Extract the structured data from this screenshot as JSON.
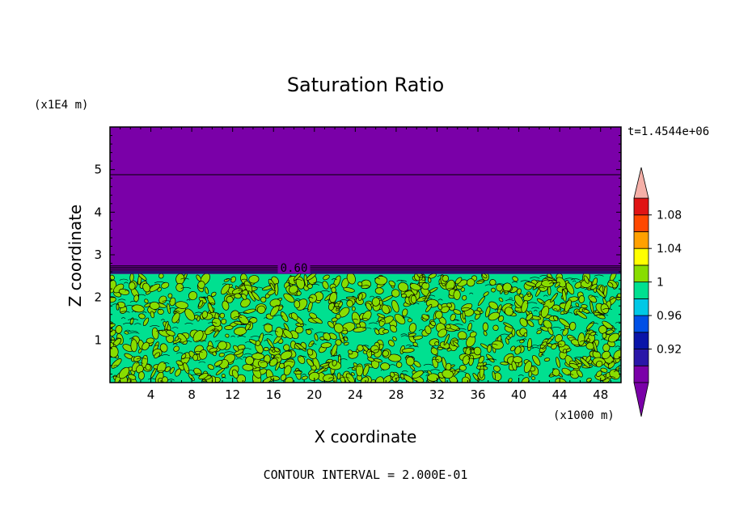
{
  "chart_data": {
    "type": "heatmap",
    "title": "Saturation Ratio",
    "xlabel": "X coordinate",
    "ylabel": "Z coordinate",
    "x_unit": "(x1000 m)",
    "y_unit": "(x1E4 m)",
    "time_label": "t=1.4544e+06",
    "footer": "CONTOUR INTERVAL = 2.000E-01",
    "contour_label": "0.60",
    "xlim": [
      0,
      50
    ],
    "ylim": [
      0,
      6
    ],
    "x_ticks": [
      4,
      8,
      12,
      16,
      20,
      24,
      28,
      32,
      36,
      40,
      44,
      48
    ],
    "x_tick_labels": [
      "4",
      "8",
      "12",
      "16",
      "20",
      "24",
      "28",
      "32",
      "36",
      "40",
      "44",
      "48"
    ],
    "y_ticks": [
      1,
      2,
      3,
      4,
      5
    ],
    "y_tick_labels": [
      "1",
      "2",
      "3",
      "4",
      "5"
    ],
    "regions": [
      {
        "zmin": 0,
        "zmax": 2.55,
        "description": "mixed 0.98–1.02",
        "colors": [
          "#00e090",
          "#88dd00"
        ]
      },
      {
        "zmin": 2.55,
        "zmax": 6.0,
        "description": "below 0.9",
        "color": "#7a00a8"
      }
    ],
    "contour_lines_z": [
      2.62,
      2.66,
      2.7,
      2.74,
      4.88
    ],
    "colorbar": {
      "levels": [
        "0.92",
        "0.96",
        "1",
        "1.04",
        "1.08"
      ],
      "bins": [
        {
          "color": "#7a00a8"
        },
        {
          "color": "#2a16a8"
        },
        {
          "color": "#0a14a8"
        },
        {
          "color": "#0050e6"
        },
        {
          "color": "#00c8e6"
        },
        {
          "color": "#00e090"
        },
        {
          "color": "#88dd00"
        },
        {
          "color": "#ffff00"
        },
        {
          "color": "#ffa000"
        },
        {
          "color": "#ff4800"
        },
        {
          "color": "#e01414"
        },
        {
          "color": "#f5b0a8"
        }
      ],
      "min_arrow_color": "#7a00a8",
      "max_arrow_color": "#f5b0a8"
    }
  }
}
